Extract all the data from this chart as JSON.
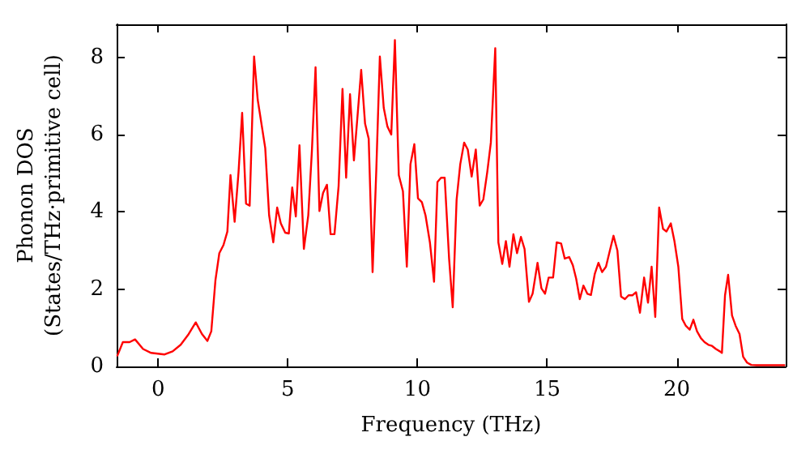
{
  "chart_data": {
    "type": "line",
    "xlabel": "Frequency (THz)",
    "ylabel": "Phonon DOS\n(States/THz·primitive cell)",
    "xlim": [
      -1.6,
      24.2
    ],
    "xticks": [
      0,
      5,
      10,
      15,
      20
    ],
    "ylim": [
      0,
      8.85
    ],
    "yticks": [
      0,
      2,
      4,
      6,
      8
    ],
    "grid": false,
    "marker": "none",
    "line_style": "solid",
    "series": [
      {
        "color": "#ff0000",
        "x": [
          -1.57,
          -1.36,
          -1.1,
          -0.89,
          -0.58,
          -0.27,
          0.25,
          0.56,
          0.87,
          1.18,
          1.45,
          1.69,
          1.9,
          2.05,
          2.21,
          2.36,
          2.52,
          2.67,
          2.79,
          2.95,
          3.1,
          3.24,
          3.39,
          3.53,
          3.7,
          3.84,
          4.13,
          4.28,
          4.44,
          4.59,
          4.73,
          4.9,
          5.04,
          5.17,
          5.31,
          5.45,
          5.62,
          5.79,
          5.93,
          6.07,
          6.22,
          6.36,
          6.51,
          6.65,
          6.8,
          6.96,
          7.11,
          7.25,
          7.4,
          7.55,
          7.69,
          7.83,
          7.98,
          8.12,
          8.27,
          8.41,
          8.55,
          8.7,
          8.84,
          8.99,
          9.13,
          9.28,
          9.44,
          9.59,
          9.73,
          9.88,
          10.02,
          10.17,
          10.31,
          10.48,
          10.64,
          10.77,
          10.91,
          11.05,
          11.22,
          11.36,
          11.51,
          11.65,
          11.8,
          11.94,
          12.09,
          12.25,
          12.4,
          12.54,
          12.69,
          12.83,
          13.0,
          13.12,
          13.27,
          13.41,
          13.55,
          13.7,
          13.84,
          13.99,
          14.13,
          14.3,
          14.44,
          14.63,
          14.78,
          14.92,
          15.06,
          15.23,
          15.37,
          15.54,
          15.68,
          15.85,
          15.99,
          16.12,
          16.26,
          16.4,
          16.55,
          16.69,
          16.84,
          16.98,
          17.12,
          17.27,
          17.42,
          17.56,
          17.71,
          17.85,
          18.0,
          18.14,
          18.29,
          18.43,
          18.58,
          18.74,
          18.89,
          19.03,
          19.17,
          19.32,
          19.47,
          19.6,
          19.77,
          19.91,
          20.06,
          20.21,
          20.35,
          20.5,
          20.64,
          20.78,
          20.93,
          21.07,
          21.22,
          21.36,
          21.51,
          21.66,
          21.74,
          21.86,
          21.98,
          22.13,
          22.27,
          22.42,
          22.56,
          22.71,
          22.87,
          23.08,
          24.15
        ],
        "values": [
          0.28,
          0.63,
          0.63,
          0.7,
          0.45,
          0.35,
          0.31,
          0.39,
          0.56,
          0.84,
          1.14,
          0.84,
          0.66,
          0.91,
          2.23,
          2.93,
          3.14,
          3.49,
          4.95,
          3.74,
          5.02,
          6.56,
          4.21,
          4.16,
          8.02,
          6.9,
          5.65,
          3.91,
          3.21,
          4.11,
          3.7,
          3.46,
          3.44,
          4.63,
          3.88,
          5.72,
          3.04,
          3.91,
          5.58,
          7.74,
          4.02,
          4.49,
          4.7,
          3.42,
          3.42,
          4.67,
          7.18,
          4.88,
          7.04,
          5.33,
          6.49,
          7.67,
          6.28,
          5.89,
          2.44,
          5.02,
          8.02,
          6.69,
          6.21,
          6.0,
          8.44,
          4.95,
          4.53,
          2.58,
          5.23,
          5.75,
          4.35,
          4.25,
          3.91,
          3.21,
          2.19,
          4.77,
          4.88,
          4.88,
          2.79,
          1.53,
          4.32,
          5.23,
          5.79,
          5.61,
          4.91,
          5.61,
          4.16,
          4.32,
          5.02,
          5.79,
          8.23,
          3.21,
          2.65,
          3.24,
          2.58,
          3.42,
          2.93,
          3.35,
          3.04,
          1.67,
          1.88,
          2.68,
          2.02,
          1.88,
          2.3,
          2.3,
          3.21,
          3.18,
          2.79,
          2.83,
          2.62,
          2.27,
          1.74,
          2.09,
          1.88,
          1.85,
          2.4,
          2.68,
          2.44,
          2.58,
          3.0,
          3.38,
          3.0,
          1.81,
          1.74,
          1.84,
          1.84,
          1.92,
          1.39,
          2.3,
          1.65,
          2.58,
          1.28,
          4.11,
          3.56,
          3.49,
          3.7,
          3.24,
          2.58,
          1.23,
          1.05,
          0.95,
          1.21,
          0.91,
          0.73,
          0.63,
          0.56,
          0.53,
          0.45,
          0.39,
          0.35,
          1.84,
          2.37,
          1.32,
          1.05,
          0.84,
          0.25,
          0.1,
          0.04,
          0.03,
          0.03
        ]
      }
    ]
  }
}
